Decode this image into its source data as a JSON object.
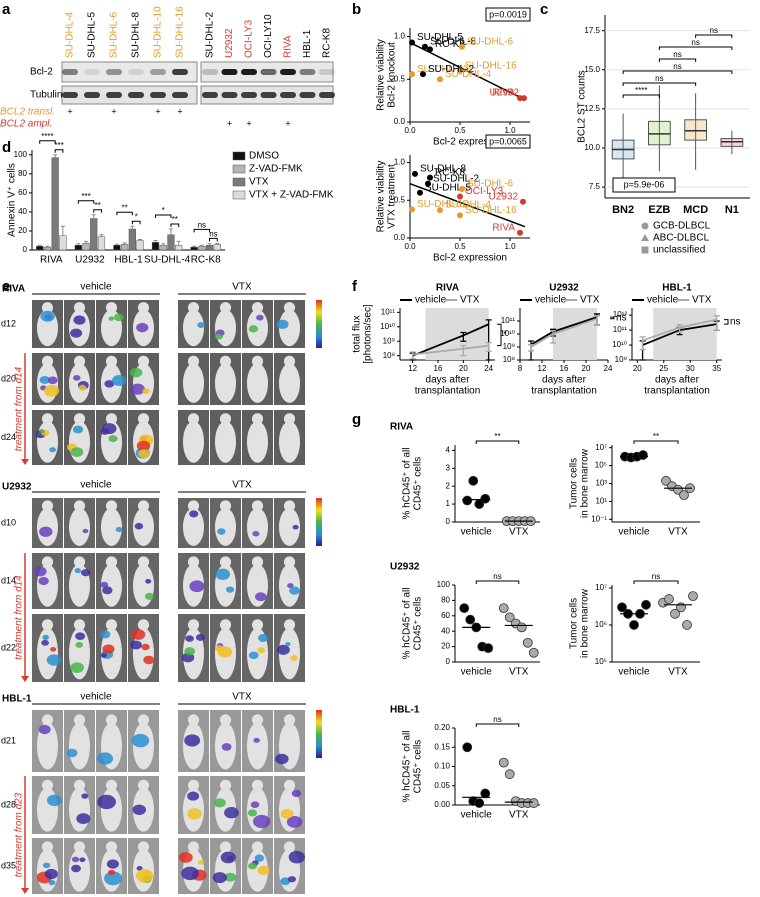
{
  "panels": [
    "a",
    "b",
    "c",
    "d",
    "e",
    "f",
    "g"
  ],
  "blot": {
    "lanes": [
      {
        "name": "SU-DHL-4",
        "color": "#e39b2e"
      },
      {
        "name": "SU-DHL-5",
        "color": "#000000"
      },
      {
        "name": "SU-DHL-6",
        "color": "#e39b2e"
      },
      {
        "name": "SU-DHL-8",
        "color": "#000000"
      },
      {
        "name": "SU-DHL-10",
        "color": "#e39b2e"
      },
      {
        "name": "SU-DHL-16",
        "color": "#e39b2e"
      },
      {
        "name": "SU-DHL-2",
        "color": "#000000"
      },
      {
        "name": "U2932",
        "color": "#d63a2f"
      },
      {
        "name": "OCI-LY3",
        "color": "#d63a2f"
      },
      {
        "name": "OCI-LY10",
        "color": "#000000"
      },
      {
        "name": "RIVA",
        "color": "#d63a2f"
      },
      {
        "name": "HBL-1",
        "color": "#000000"
      },
      {
        "name": "RC-K8",
        "color": "#000000"
      }
    ],
    "rows": [
      "Bcl-2",
      "Tubulin"
    ],
    "mark": "+",
    "annotations": [
      {
        "label": "BCL2 transl.",
        "color": "#e39b2e",
        "plus": [
          true,
          false,
          true,
          false,
          true,
          true,
          false,
          false,
          false,
          false,
          false,
          false,
          false
        ]
      },
      {
        "label": "BCL2 ampl.",
        "color": "#d63a2f",
        "plus": [
          false,
          false,
          false,
          false,
          false,
          false,
          false,
          true,
          true,
          false,
          true,
          false,
          false
        ]
      }
    ]
  },
  "imaging": {
    "sections": [
      {
        "title": "RIVA",
        "groups": [
          "vehicle",
          "VTX"
        ],
        "days": [
          "d12",
          "d20",
          "d24"
        ],
        "treatment": "treatment from d14"
      },
      {
        "title": "U2932",
        "groups": [
          "vehicle",
          "VTX"
        ],
        "days": [
          "d10",
          "d14",
          "d22"
        ],
        "treatment": "treatment from d14"
      },
      {
        "title": "HBL-1",
        "groups": [
          "vehicle",
          "VTX"
        ],
        "days": [
          "d21",
          "d28",
          "d35"
        ],
        "treatment": "treatment from d23"
      }
    ]
  },
  "chart_data": [
    {
      "type": "scatter",
      "ylabel": [
        "Relative viability",
        "Bcl-2 knockout"
      ],
      "xlabel": "Bcl-2 expression",
      "annotation": "p=0.0019",
      "labels": [
        "SU-DHL-5",
        "SU-DHL-8",
        "RC-K8",
        "SU-DHL-6",
        "SU-DHL-10",
        "SU-DHL-16",
        "SU-DHL-2",
        "SU-DHL-4",
        "RIVA",
        "U2932"
      ],
      "x": [
        0.02,
        0.15,
        0.2,
        0.52,
        0.02,
        0.5,
        0.13,
        0.3,
        1.1,
        1.14
      ],
      "values": [
        0.93,
        0.88,
        0.85,
        0.88,
        0.56,
        0.6,
        0.56,
        0.5,
        0.28,
        0.28
      ],
      "colors": [
        "#000000",
        "#000000",
        "#000000",
        "#e39b2e",
        "#e39b2e",
        "#e39b2e",
        "#000000",
        "#e39b2e",
        "#d63a2f",
        "#d63a2f"
      ],
      "trendline": {
        "x": [
          0,
          1.15
        ],
        "y": [
          0.93,
          0.26
        ]
      },
      "xlim": [
        0,
        1.2
      ],
      "ylim": [
        0,
        1.1
      ],
      "xticks": [
        {
          "value": 0,
          "label": "0.0"
        },
        {
          "value": 0.5,
          "label": "0.5"
        },
        {
          "value": 1,
          "label": "1.0"
        }
      ],
      "yticks": [
        {
          "value": 0,
          "label": "0.0"
        },
        {
          "value": 0.5,
          "label": "0.5"
        },
        {
          "value": 1,
          "label": "1.0"
        }
      ]
    },
    {
      "type": "scatter",
      "ylabel": [
        "Relative viability",
        "VTX treatment"
      ],
      "xlabel": "Bcl-2 expression",
      "annotation": "p=0.0065",
      "labels": [
        "SU-DHL-8",
        "RC-K8",
        "SU-DHL-2",
        "SU-DHL-5",
        "SU-DHL-6",
        "OCI-LY3",
        "U2932",
        "SU-DHL-10",
        "SU-DHL-4",
        "SU-DHL-16",
        "RIVA"
      ],
      "x": [
        0.05,
        0.2,
        0.18,
        0.1,
        0.52,
        0.5,
        1.13,
        0.02,
        0.3,
        0.5,
        1.1
      ],
      "values": [
        0.85,
        0.8,
        0.72,
        0.6,
        0.65,
        0.55,
        0.48,
        0.38,
        0.37,
        0.3,
        0.07
      ],
      "colors": [
        "#000000",
        "#000000",
        "#000000",
        "#000000",
        "#e39b2e",
        "#d63a2f",
        "#d63a2f",
        "#e39b2e",
        "#e39b2e",
        "#e39b2e",
        "#d63a2f"
      ],
      "trendline": {
        "x": [
          0,
          1.15
        ],
        "y": [
          0.72,
          0.15
        ]
      },
      "xlim": [
        0,
        1.2
      ],
      "ylim": [
        0,
        1.1
      ],
      "xticks": [
        {
          "value": 0,
          "label": "0.0"
        },
        {
          "value": 0.5,
          "label": "0.5"
        },
        {
          "value": 1,
          "label": "1.0"
        }
      ],
      "yticks": [
        {
          "value": 0,
          "label": "0.0"
        },
        {
          "value": 0.5,
          "label": "0.5"
        },
        {
          "value": 1,
          "label": "1.0"
        }
      ]
    },
    {
      "type": "box",
      "ylabel": "BCL2 ST counts",
      "annotation": "p=5.9e-06",
      "grid": true,
      "categories": [
        "BN2",
        "EZB",
        "MCD",
        "N1"
      ],
      "colors": [
        "#5aa0d8",
        "#8cc63f",
        "#e8a030",
        "#e05050"
      ],
      "median": [
        9.9,
        10.9,
        11.1,
        10.4
      ],
      "q1": [
        9.3,
        10.2,
        10.5,
        10.1
      ],
      "q3": [
        10.5,
        11.7,
        11.8,
        10.6
      ],
      "whisker_low": [
        7.7,
        8.5,
        8.6,
        9.6
      ],
      "whisker_high": [
        12.2,
        14.0,
        13.5,
        11.1
      ],
      "significance": [
        "****",
        "ns",
        "ns",
        "ns",
        "ns",
        "ns"
      ],
      "legend": [
        {
          "name": "GCB-DLBCL",
          "shape": "circle"
        },
        {
          "name": "ABC-DLBCL",
          "shape": "triangle"
        },
        {
          "name": "unclassified",
          "shape": "square"
        }
      ],
      "ylim": [
        6.8,
        18.5
      ],
      "yticks": [
        7.5,
        {
          "value": 10,
          "label": "10.0"
        },
        12.5,
        {
          "value": 15,
          "label": "15.0"
        },
        17.5
      ]
    },
    {
      "type": "bar",
      "ylabel": "Annexin V⁺ cells",
      "categories": [
        "RIVA",
        "U2932",
        "HBL-1",
        "SU-DHL-4",
        "RC-K8"
      ],
      "series": [
        {
          "name": "DMSO",
          "color": "#111111",
          "values": [
            4,
            5,
            5,
            8,
            3
          ],
          "errors": [
            1,
            1.5,
            1,
            2,
            1
          ]
        },
        {
          "name": "Z-VAD-FMK",
          "color": "#b5b5b5",
          "values": [
            3,
            7,
            6,
            5,
            4
          ],
          "errors": [
            1,
            2,
            1.5,
            1.5,
            1
          ]
        },
        {
          "name": "VTX",
          "color": "#7a7a7a",
          "values": [
            97,
            33,
            22,
            16,
            5
          ],
          "errors": [
            3,
            4,
            3,
            6,
            1.5
          ]
        },
        {
          "name": "VTX + Z-VAD-FMK",
          "color": "#dcdcdc",
          "values": [
            15,
            14,
            10,
            5,
            6
          ],
          "errors": [
            10,
            2,
            1,
            4,
            1
          ]
        }
      ],
      "significance": [
        [
          "****",
          "***"
        ],
        [
          "***",
          "**"
        ],
        [
          "**",
          "*"
        ],
        [
          "*",
          "**"
        ],
        [
          "ns",
          "ns"
        ]
      ],
      "ylim": [
        0,
        105
      ],
      "yticks": [
        0,
        20,
        40,
        60,
        80,
        100
      ]
    },
    {
      "type": "line",
      "title": "RIVA",
      "log": true,
      "ylabel": [
        "total flux",
        "[photons/sec]"
      ],
      "xlabel": [
        "days after",
        "transplantation"
      ],
      "x": [
        12,
        20,
        24
      ],
      "treatment_period": [
        14,
        24
      ],
      "annotation": "*",
      "series": [
        {
          "name": "vehicle",
          "color": "#000000",
          "values": [
            100000000.0,
            2500000000.0,
            15000000000.0
          ],
          "errors": [
            50000000.0,
            1500000000.0,
            15000000000.0
          ]
        },
        {
          "name": "VTX",
          "color": "#aaaaaa",
          "values": [
            120000000.0,
            300000000.0,
            500000000.0
          ],
          "errors": [
            60000000.0,
            200000000.0,
            300000000.0
          ]
        }
      ],
      "xlim": [
        10,
        25
      ],
      "xticks": [
        12,
        16,
        20,
        24
      ],
      "ylim": [
        50000000.0,
        200000000000.0
      ],
      "yticks": [
        {
          "value": 100000000.0,
          "label": "10⁸"
        },
        {
          "value": 1000000000.0,
          "label": "10⁹"
        },
        {
          "value": 10000000000.0,
          "label": "10¹⁰"
        },
        {
          "value": 100000000000.0,
          "label": "10¹¹"
        }
      ]
    },
    {
      "type": "line",
      "title": "U2932",
      "log": true,
      "xlabel": [
        "days after",
        "transplantation"
      ],
      "x": [
        10,
        14,
        22
      ],
      "treatment_period": [
        14,
        22
      ],
      "annotation": "ns",
      "series": [
        {
          "name": "vehicle",
          "color": "#000000",
          "values": [
            1500000000.0,
            15000000000.0,
            200000000000.0
          ],
          "errors": [
            1400000000.0,
            8000000000.0,
            150000000000.0
          ]
        },
        {
          "name": "VTX",
          "color": "#aaaaaa",
          "values": [
            1000000000.0,
            10000000000.0,
            150000000000.0
          ],
          "errors": [
            500000000.0,
            8000000000.0,
            100000000000.0
          ]
        }
      ],
      "xlim": [
        8,
        24
      ],
      "xticks": [
        8,
        12,
        16,
        20,
        24
      ],
      "ylim": [
        100000000.0,
        1000000000000.0
      ],
      "yticks": [
        {
          "value": 100000000.0,
          "label": "10⁸"
        },
        {
          "value": 1000000000.0,
          "label": "10⁹"
        },
        {
          "value": 10000000000.0,
          "label": "10¹⁰"
        },
        {
          "value": 100000000000.0,
          "label": "10¹¹"
        }
      ]
    },
    {
      "type": "line",
      "title": "HBL-1",
      "log": true,
      "xlabel": [
        "days after",
        "transplantation"
      ],
      "x": [
        21,
        28,
        35
      ],
      "treatment_period": [
        23,
        35
      ],
      "annotation": "ns",
      "series": [
        {
          "name": "vehicle",
          "color": "#000000",
          "values": [
            10000000000.0,
            100000000000.0,
            250000000000.0
          ],
          "errors": [
            9000000000.0,
            50000000000.0,
            150000000000.0
          ]
        },
        {
          "name": "VTX",
          "color": "#aaaaaa",
          "values": [
            20000000000.0,
            150000000000.0,
            500000000000.0
          ],
          "errors": [
            15000000000.0,
            80000000000.0,
            400000000000.0
          ]
        }
      ],
      "xlim": [
        19,
        36
      ],
      "xticks": [
        20,
        25,
        30,
        35
      ],
      "ylim": [
        1000000000.0,
        3000000000000.0
      ],
      "yticks": [
        {
          "value": 1000000000.0,
          "label": "10⁹"
        },
        {
          "value": 10000000000.0,
          "label": "10¹⁰"
        },
        {
          "value": 100000000000.0,
          "label": "10¹¹"
        },
        {
          "value": 1000000000000.0,
          "label": "10¹²"
        }
      ]
    },
    {
      "type": "strip",
      "title": "RIVA",
      "ylabel": [
        "% hCD45⁺ of all",
        "CD45⁺ cells"
      ],
      "annotation": "**",
      "groups": [
        {
          "name": "vehicle",
          "color": "#000000",
          "values": [
            1.2,
            2.3,
            1.0,
            1.3
          ]
        },
        {
          "name": "VTX",
          "color": "#aaaaaa",
          "values": [
            0.05,
            0.05,
            0.05,
            0.05,
            0.05
          ]
        }
      ],
      "ylim": [
        0,
        4.3
      ],
      "yticks": [
        0,
        1,
        2,
        3,
        4
      ]
    },
    {
      "type": "strip",
      "log": true,
      "ylabel": [
        "Tumor cells",
        "in bone marrow"
      ],
      "annotation": "**",
      "groups": [
        {
          "name": "vehicle",
          "color": "#000000",
          "values": [
            1000000.0,
            800000.0,
            1000000.0,
            1500000.0
          ]
        },
        {
          "name": "VTX",
          "color": "#aaaaaa",
          "values": [
            2000,
            500,
            200,
            50,
            300
          ]
        }
      ],
      "ylim": [
        0.05,
        20000000.0
      ],
      "yticks": [
        {
          "value": 0.1,
          "label": "10⁻¹"
        },
        {
          "value": 10,
          "label": "10¹"
        },
        {
          "value": 1000,
          "label": "10³"
        },
        {
          "value": 100000,
          "label": "10⁵"
        },
        {
          "value": 10000000,
          "label": "10⁷"
        }
      ]
    },
    {
      "type": "strip",
      "title": "U2932",
      "ylabel": [
        "% hCD45⁺ of all",
        "CD45⁺ cells"
      ],
      "annotation": "ns",
      "groups": [
        {
          "name": "vehicle",
          "color": "#000000",
          "values": [
            70,
            55,
            45,
            20,
            18
          ]
        },
        {
          "name": "VTX",
          "color": "#aaaaaa",
          "values": [
            70,
            58,
            50,
            45,
            25,
            12
          ]
        }
      ],
      "ylim": [
        0,
        100
      ],
      "yticks": [
        0,
        20,
        40,
        60,
        80,
        100
      ]
    },
    {
      "type": "strip",
      "log": true,
      "ylabel": [
        "Tumor cells",
        "in bone marrow"
      ],
      "annotation": "ns",
      "groups": [
        {
          "name": "vehicle",
          "color": "#000000",
          "values": [
            3000000.0,
            2000000.0,
            1000000.0,
            2000000.0,
            3500000.0
          ]
        },
        {
          "name": "VTX",
          "color": "#aaaaaa",
          "values": [
            4000000.0,
            5000000.0,
            2000000.0,
            3000000.0,
            1000000.0,
            6000000.0
          ]
        }
      ],
      "ylim": [
        100000.0,
        12000000.0
      ],
      "yticks": [
        {
          "value": 100000,
          "label": "10⁵"
        },
        {
          "value": 1000000,
          "label": "10⁶"
        },
        {
          "value": 10000000,
          "label": "10⁷"
        }
      ]
    },
    {
      "type": "strip",
      "title": "HBL-1",
      "ylabel": [
        "% hCD45⁺ of all",
        "CD45⁺ cells"
      ],
      "annotation": "ns",
      "groups": [
        {
          "name": "vehicle",
          "color": "#000000",
          "values": [
            0.15,
            0.01,
            0.005,
            0.03
          ]
        },
        {
          "name": "VTX",
          "color": "#aaaaaa",
          "values": [
            0.11,
            0.08,
            0.01,
            0.005,
            0.005,
            0.005
          ]
        }
      ],
      "ylim": [
        0,
        0.2
      ],
      "yticks": [
        {
          "value": 0,
          "label": "0.00"
        },
        {
          "value": 0.05,
          "label": "0.05"
        },
        {
          "value": 0.1,
          "label": "0.10"
        },
        {
          "value": 0.15,
          "label": "0.15"
        },
        {
          "value": 0.2,
          "label": "0.20"
        }
      ]
    }
  ]
}
